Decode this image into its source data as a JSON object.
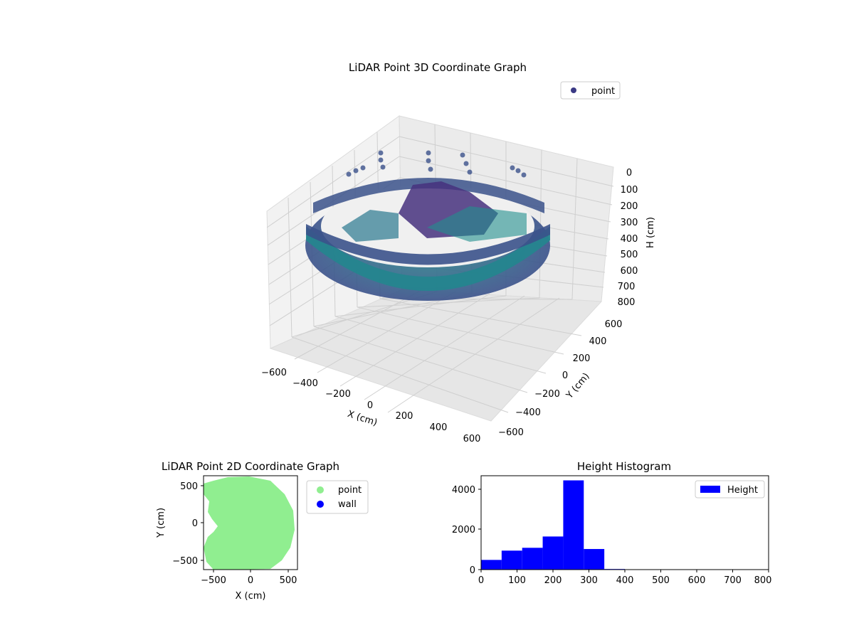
{
  "chart_data": [
    {
      "type": "scatter3d",
      "title": "LiDAR Point 3D Coordinate Graph",
      "xlabel": "X (cm)",
      "ylabel": "Y (cm)",
      "zlabel": "H (cm)",
      "xlim": [
        -600,
        600
      ],
      "ylim": [
        -600,
        600
      ],
      "zlim": [
        800,
        0
      ],
      "xticks": [
        "−600",
        "−400",
        "−200",
        "0",
        "200",
        "400",
        "600"
      ],
      "yticks": [
        "−600",
        "−400",
        "−200",
        "0",
        "200",
        "400",
        "600"
      ],
      "zticks": [
        "0",
        "100",
        "200",
        "300",
        "400",
        "500",
        "600",
        "700",
        "800"
      ],
      "legend": {
        "position": "top-right",
        "entries": [
          {
            "name": "point",
            "color": "#3b3a85"
          }
        ]
      },
      "colormap": "viridis",
      "grid": true,
      "series": [
        {
          "name": "point",
          "description_of_points": "ring of points around radius ~600 cm at heights ~150-350 cm plus inner clutter",
          "ring_radius": 600,
          "ring_height_range": [
            150,
            350
          ]
        }
      ]
    },
    {
      "type": "scatter",
      "title": "LiDAR Point 2D Coordinate Graph",
      "xlabel": "X (cm)",
      "ylabel": "Y (cm)",
      "xticks": [
        "−500",
        "0",
        "500"
      ],
      "yticks": [
        "−500",
        "0",
        "500"
      ],
      "xlim": [
        -620,
        620
      ],
      "ylim": [
        -620,
        620
      ],
      "legend": {
        "position": "right",
        "entries": [
          {
            "name": "point",
            "color": "#90ee90"
          },
          {
            "name": "wall",
            "color": "#0000ff"
          }
        ]
      }
    },
    {
      "type": "bar",
      "title": "Height Histogram",
      "xlabel": "",
      "ylabel": "",
      "xlim": [
        0,
        800
      ],
      "ylim": [
        0,
        4650
      ],
      "xticks": [
        "0",
        "100",
        "200",
        "300",
        "400",
        "500",
        "600",
        "700",
        "800"
      ],
      "yticks": [
        "0",
        "2000",
        "4000"
      ],
      "bin_width": 57.14,
      "bin_edges": [
        0,
        57.14,
        114.29,
        171.43,
        228.57,
        285.71,
        342.86,
        400,
        457.14,
        514.29,
        571.43,
        628.57,
        685.71,
        742.86,
        800
      ],
      "values": [
        480,
        940,
        1080,
        1640,
        4420,
        1020,
        30,
        0,
        0,
        0,
        0,
        0,
        0,
        0
      ],
      "legend": {
        "position": "top-right",
        "entries": [
          {
            "name": "Height",
            "color": "#0000ff"
          }
        ]
      },
      "bar_color": "#0000ff"
    }
  ]
}
